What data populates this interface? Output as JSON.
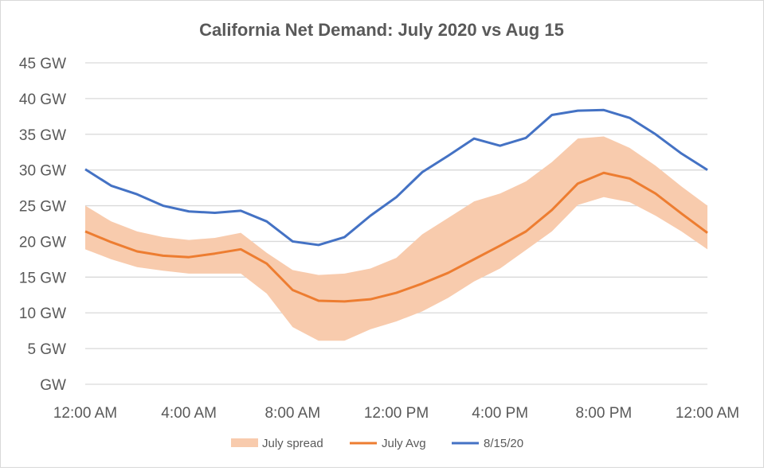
{
  "chart_data": {
    "type": "line",
    "title": "California Net Demand: July 2020 vs Aug 15",
    "xlabel": "",
    "ylabel": "",
    "ylim": [
      0,
      45
    ],
    "y_ticks": [
      "GW",
      "5 GW",
      "10 GW",
      "15 GW",
      "20 GW",
      "25 GW",
      "30 GW",
      "35 GW",
      "40 GW",
      "45 GW"
    ],
    "x_ticks": [
      "12:00 AM",
      "4:00 AM",
      "8:00 AM",
      "12:00 PM",
      "4:00 PM",
      "8:00 PM",
      "12:00 AM"
    ],
    "x_hours": [
      0,
      1,
      2,
      3,
      4,
      5,
      6,
      7,
      8,
      9,
      10,
      11,
      12,
      13,
      14,
      15,
      16,
      17,
      18,
      19,
      20,
      21,
      22,
      23,
      24
    ],
    "grid": true,
    "legend_position": "bottom",
    "colors": {
      "spread": "#f8cbad",
      "avg": "#ed7d31",
      "day": "#4472c4"
    },
    "series": [
      {
        "name": "July spread",
        "type": "band",
        "upper": [
          25.0,
          22.8,
          21.4,
          20.6,
          20.2,
          20.5,
          21.2,
          18.4,
          16.0,
          15.3,
          15.5,
          16.2,
          17.7,
          21.0,
          23.3,
          25.6,
          26.7,
          28.4,
          31.1,
          34.4,
          34.7,
          33.1,
          30.6,
          27.7,
          25.0
        ],
        "lower": [
          18.9,
          17.5,
          16.4,
          15.9,
          15.5,
          15.5,
          15.5,
          12.7,
          8.0,
          6.1,
          6.1,
          7.7,
          8.8,
          10.2,
          12.1,
          14.4,
          16.2,
          18.8,
          21.4,
          25.1,
          26.2,
          25.5,
          23.6,
          21.4,
          18.9
        ]
      },
      {
        "name": "July Avg",
        "type": "line",
        "values": [
          21.4,
          19.9,
          18.6,
          18.0,
          17.8,
          18.3,
          18.9,
          16.9,
          13.2,
          11.7,
          11.6,
          11.9,
          12.8,
          14.1,
          15.6,
          17.5,
          19.4,
          21.4,
          24.4,
          28.1,
          29.6,
          28.8,
          26.7,
          23.9,
          21.2
        ]
      },
      {
        "name": "8/15/20",
        "type": "line",
        "values": [
          30.1,
          27.8,
          26.6,
          25.0,
          24.2,
          24.0,
          24.3,
          22.8,
          20.0,
          19.5,
          20.6,
          23.6,
          26.2,
          29.7,
          32.0,
          34.4,
          33.4,
          34.5,
          37.7,
          38.3,
          38.4,
          37.3,
          35.0,
          32.3,
          30.0
        ]
      }
    ]
  }
}
